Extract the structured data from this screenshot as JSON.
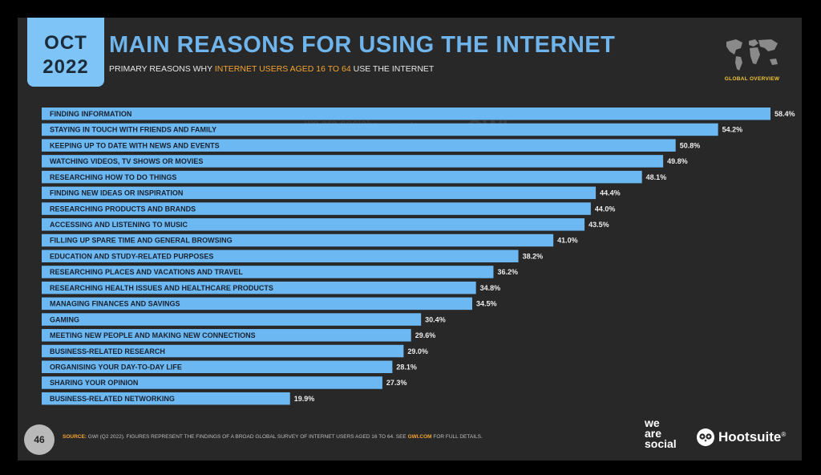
{
  "badge": {
    "month": "OCT",
    "year": "2022"
  },
  "title": "MAIN REASONS FOR USING THE INTERNET",
  "subtitle": {
    "before": "PRIMARY REASONS WHY ",
    "highlight": "INTERNET USERS AGED 16 TO 64",
    "after": " USE THE INTERNET"
  },
  "map_label": "GLOBAL OVERVIEW",
  "watermarks": {
    "was": "we are social",
    "hoot": "Hootsuite",
    "gwi": "GWI."
  },
  "chart_data": {
    "type": "bar",
    "orientation": "horizontal",
    "categories": [
      "FINDING INFORMATION",
      "STAYING IN TOUCH WITH FRIENDS AND FAMILY",
      "KEEPING UP TO DATE WITH NEWS AND EVENTS",
      "WATCHING VIDEOS, TV SHOWS OR MOVIES",
      "RESEARCHING HOW TO DO THINGS",
      "FINDING NEW IDEAS OR INSPIRATION",
      "RESEARCHING PRODUCTS AND BRANDS",
      "ACCESSING AND LISTENING TO MUSIC",
      "FILLING UP SPARE TIME AND GENERAL BROWSING",
      "EDUCATION AND STUDY-RELATED PURPOSES",
      "RESEARCHING PLACES AND VACATIONS AND TRAVEL",
      "RESEARCHING HEALTH ISSUES AND HEALTHCARE PRODUCTS",
      "MANAGING FINANCES AND SAVINGS",
      "GAMING",
      "MEETING NEW PEOPLE AND MAKING NEW CONNECTIONS",
      "BUSINESS-RELATED RESEARCH",
      "ORGANISING YOUR DAY-TO-DAY LIFE",
      "SHARING YOUR OPINION",
      "BUSINESS-RELATED NETWORKING"
    ],
    "values": [
      58.4,
      54.2,
      50.8,
      49.8,
      48.1,
      44.4,
      44.0,
      43.5,
      41.0,
      38.2,
      36.2,
      34.8,
      34.5,
      30.4,
      29.6,
      29.0,
      28.1,
      27.3,
      19.9
    ],
    "value_labels": [
      "58.4%",
      "54.2%",
      "50.8%",
      "49.8%",
      "48.1%",
      "44.4%",
      "44.0%",
      "43.5%",
      "41.0%",
      "38.2%",
      "36.2%",
      "34.8%",
      "34.5%",
      "30.4%",
      "29.6%",
      "29.0%",
      "28.1%",
      "27.3%",
      "19.9%"
    ],
    "bar_color": "#6bb8f2",
    "label_color": "#1a2230",
    "value_color": "#ececec"
  },
  "footer": {
    "page_number": "46",
    "source_label": "SOURCE:",
    "source_text": " GWI (Q2 2022). FIGURES REPRESENT THE FINDINGS OF A BROAD GLOBAL SURVEY OF INTERNET USERS AGED 16 TO 64. SEE ",
    "source_link": "GWI.COM",
    "source_after": " FOR FULL DETAILS.",
    "brand_was": [
      "we",
      "are",
      "social"
    ],
    "brand_hootsuite": "Hootsuite",
    "registered": "®"
  },
  "colors": {
    "accent": "#6fb5ec",
    "highlight": "#f3a433",
    "background": "#282828"
  }
}
